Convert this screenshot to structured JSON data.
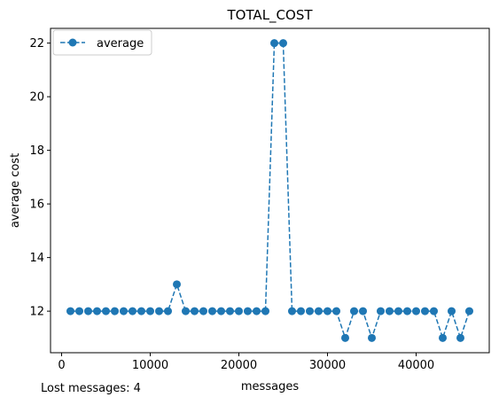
{
  "chart_data": {
    "type": "line",
    "title": "TOTAL_COST",
    "xlabel": "messages",
    "ylabel": "average cost",
    "xlim": [
      -1250,
      48250
    ],
    "ylim": [
      10.45,
      22.55
    ],
    "xticks": [
      0,
      10000,
      20000,
      30000,
      40000
    ],
    "xtick_labels": [
      "0",
      "10000",
      "20000",
      "30000",
      "40000"
    ],
    "yticks": [
      12,
      14,
      16,
      18,
      20,
      22
    ],
    "ytick_labels": [
      "12",
      "14",
      "16",
      "18",
      "20",
      "22"
    ],
    "grid": false,
    "legend_position": "upper-left",
    "series": [
      {
        "name": "average",
        "color": "#1f77b4",
        "line_style": "dashed",
        "marker": "circle",
        "x": [
          1000,
          2000,
          3000,
          4000,
          5000,
          6000,
          7000,
          8000,
          9000,
          10000,
          11000,
          12000,
          13000,
          14000,
          15000,
          16000,
          17000,
          18000,
          19000,
          20000,
          21000,
          22000,
          23000,
          24000,
          25000,
          26000,
          27000,
          28000,
          29000,
          30000,
          31000,
          32000,
          33000,
          34000,
          35000,
          36000,
          37000,
          38000,
          39000,
          40000,
          41000,
          42000,
          43000,
          44000,
          45000,
          46000
        ],
        "y": [
          12,
          12,
          12,
          12,
          12,
          12,
          12,
          12,
          12,
          12,
          12,
          12,
          13,
          12,
          12,
          12,
          12,
          12,
          12,
          12,
          12,
          12,
          12,
          22,
          22,
          12,
          12,
          12,
          12,
          12,
          12,
          11,
          12,
          12,
          11,
          12,
          12,
          12,
          12,
          12,
          12,
          12,
          11,
          12,
          11,
          12
        ]
      }
    ]
  },
  "footnote": "Lost messages: 4"
}
